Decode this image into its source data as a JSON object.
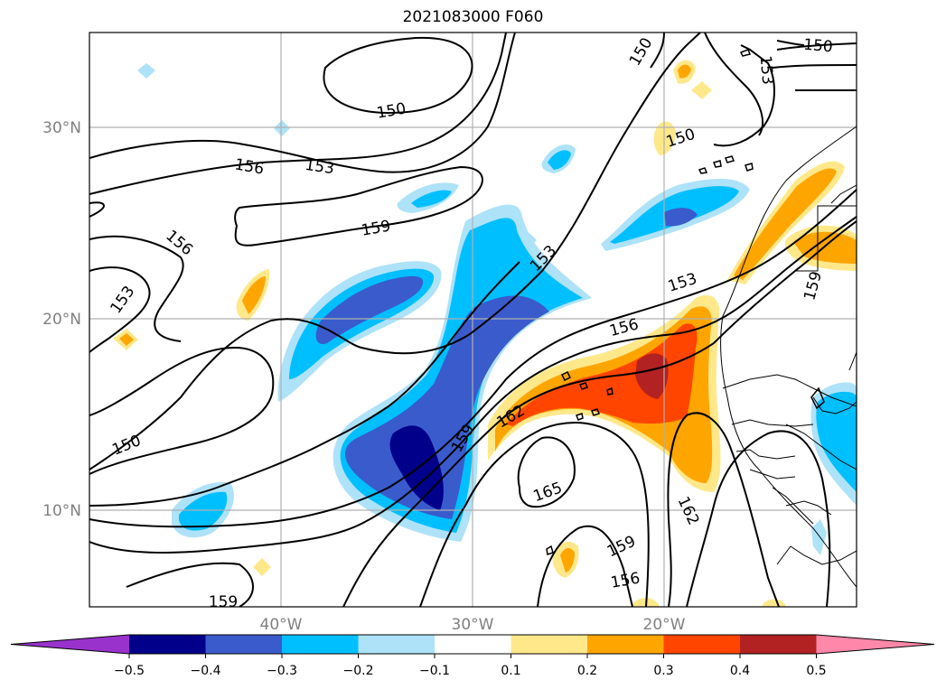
{
  "title": "2021083000 F060",
  "map": {
    "lat_labels": [
      "30°N",
      "20°N",
      "10°N"
    ],
    "lon_labels": [
      "40°W",
      "30°W",
      "20°W"
    ],
    "contour_labels": [
      "150",
      "150",
      "150",
      "150",
      "153",
      "153",
      "153",
      "153",
      "153",
      "156",
      "156",
      "156",
      "156",
      "159",
      "159",
      "159",
      "159",
      "159",
      "162",
      "162",
      "165",
      "150"
    ]
  },
  "colorbar": {
    "ticks": [
      "−0.5",
      "−0.4",
      "−0.3",
      "−0.2",
      "−0.1",
      "0.1",
      "0.2",
      "0.3",
      "0.4",
      "0.5"
    ],
    "colors": [
      "#9932cc",
      "#00008b",
      "#3a5bcc",
      "#00bfff",
      "#aee2f8",
      "#ffffff",
      "#ffe88a",
      "#ffa500",
      "#ff4500",
      "#b22222",
      "#ff88aa"
    ]
  }
}
